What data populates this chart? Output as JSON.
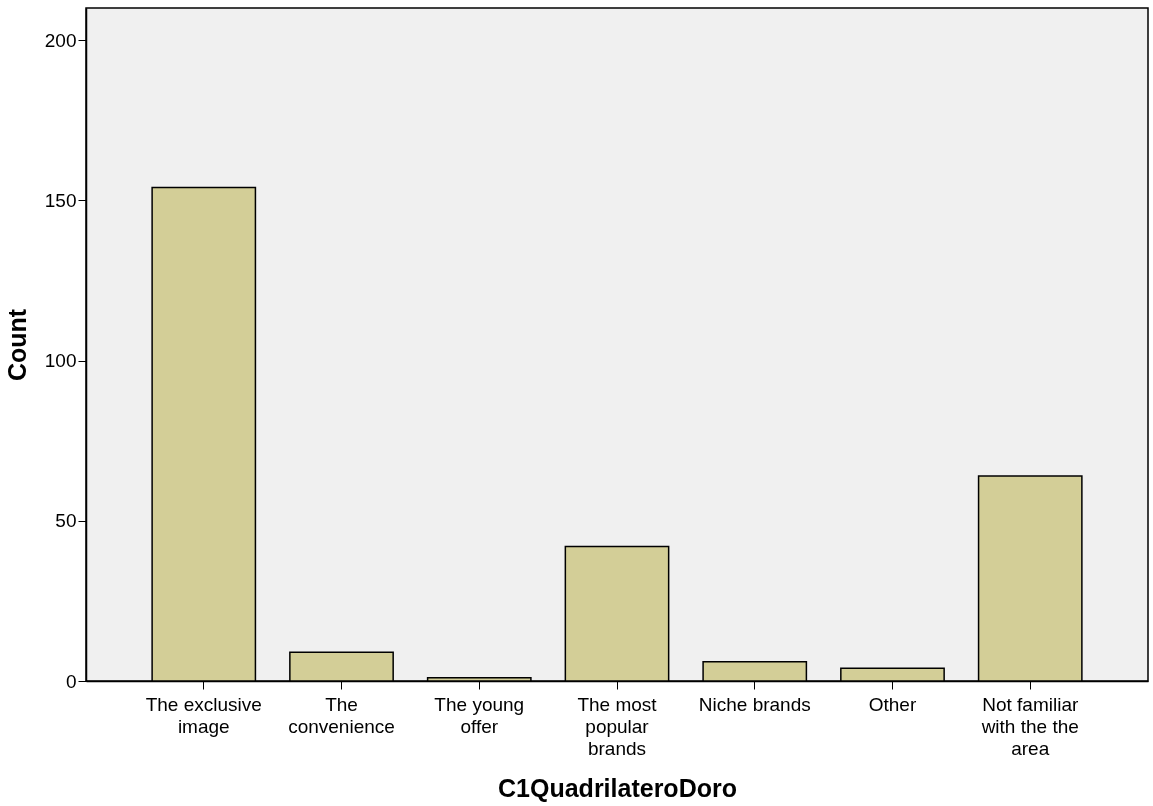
{
  "chart_data": {
    "type": "bar",
    "xlabel": "C1QuadrilateroDoro",
    "ylabel": "Count",
    "categories": [
      "The exclusive\nimage",
      "The\nconvenience",
      "The young\noffer",
      "The most\npopular\nbrands",
      "Niche brands",
      "Other",
      "Not familiar\nwith the  the\narea"
    ],
    "values": [
      154,
      9,
      1,
      42,
      6,
      4,
      64
    ],
    "color": "#d3ce97",
    "ylim": [
      0,
      210
    ],
    "yticks": [
      0,
      50,
      100,
      150,
      200
    ],
    "grid": false
  }
}
